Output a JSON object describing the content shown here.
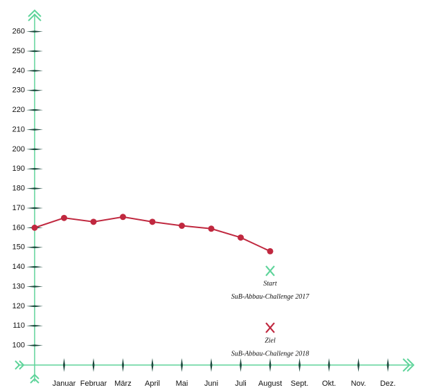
{
  "chart_data": {
    "type": "line",
    "categories": [
      null,
      "Januar",
      "Februar",
      "März",
      "April",
      "Mai",
      "Juni",
      "Juli",
      "August",
      "Sept.",
      "Okt.",
      "Nov.",
      "Dez."
    ],
    "series": [
      {
        "color": "#c0283f",
        "values": [
          160,
          165,
          163,
          165.5,
          163,
          161,
          159.5,
          155,
          148,
          null,
          null,
          null,
          null
        ]
      }
    ],
    "ylim": [
      90,
      270
    ],
    "yticks": [
      100,
      110,
      120,
      130,
      140,
      150,
      160,
      170,
      180,
      190,
      200,
      210,
      220,
      230,
      240,
      250,
      260
    ],
    "axis_color": "#5ed49a",
    "annotations": [
      {
        "category": 8,
        "value": 138,
        "color": "#5ed49a",
        "label": "Start",
        "sublabel": "SuB-Abbau-Challenge 2017"
      },
      {
        "category": 8,
        "value": 109,
        "color": "#c0283f",
        "label": "Ziel",
        "sublabel": "SuB-Abbau-Challenge 2018"
      }
    ]
  }
}
